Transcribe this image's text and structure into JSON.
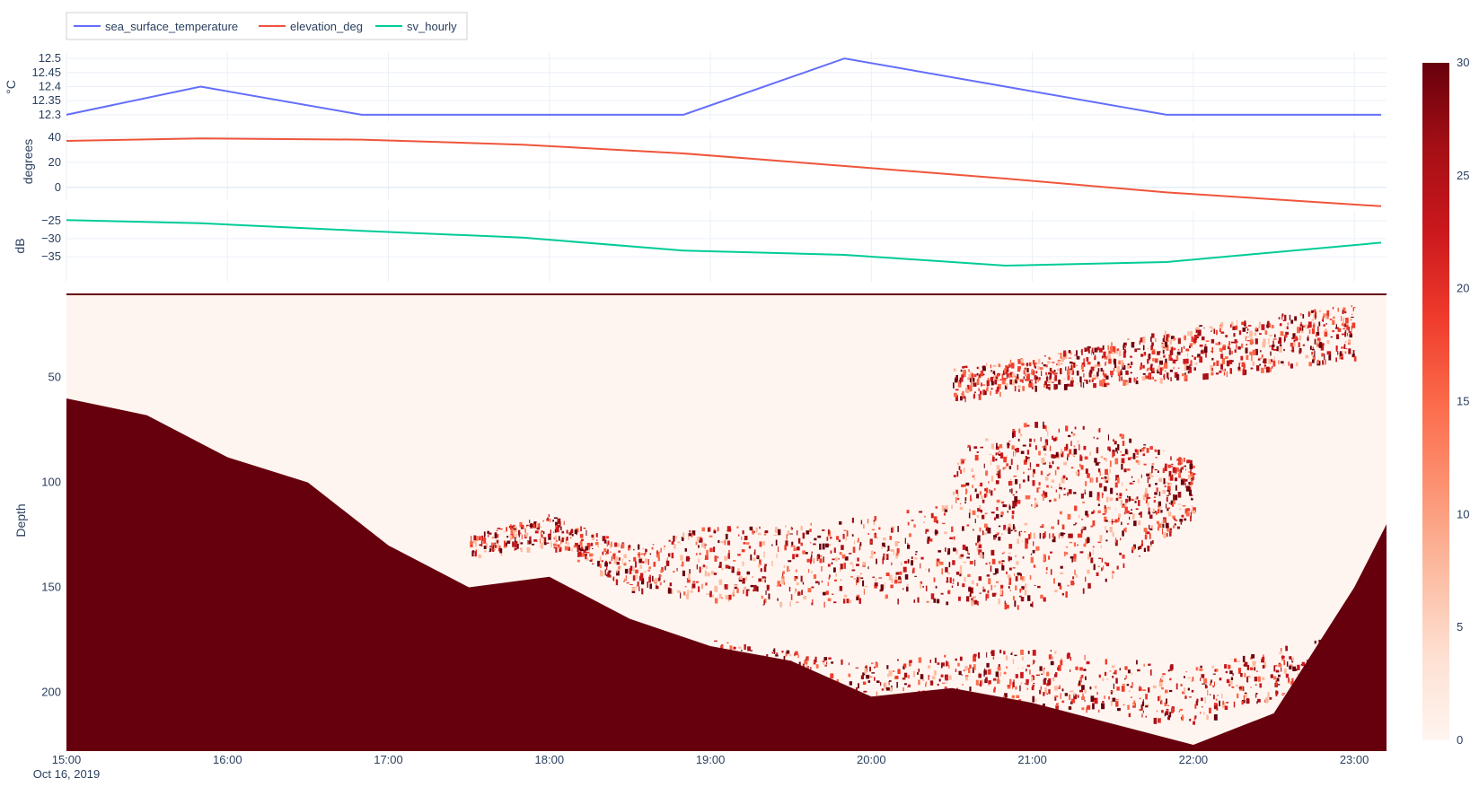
{
  "chart_data": {
    "type": "line",
    "colors": {
      "sea_surface_temperature": "#636efa",
      "elevation_deg": "#ef553b",
      "sv_hourly": "#00cc96",
      "grid": "#ebf0f8",
      "heat_low": "#fff5f0",
      "heat_high": "#67000d"
    },
    "legend": {
      "position": "top-left",
      "items": [
        "sea_surface_temperature",
        "elevation_deg",
        "sv_hourly"
      ]
    },
    "x_axis": {
      "ticks": [
        "15:00",
        "16:00",
        "17:00",
        "18:00",
        "19:00",
        "20:00",
        "21:00",
        "22:00",
        "23:00"
      ],
      "date_label": "Oct 16, 2019",
      "range": [
        "2019-10-16 15:00",
        "2019-10-16 23:12"
      ]
    },
    "panels": [
      {
        "series": "sea_surface_temperature",
        "ylabel": "°C",
        "ylim": [
          12.29,
          12.51
        ],
        "yticks": [
          "12.3",
          "12.35",
          "12.4",
          "12.45",
          "12.5"
        ],
        "x": [
          "15:00",
          "15:50",
          "16:50",
          "17:50",
          "18:50",
          "19:50",
          "20:50",
          "21:50",
          "23:10"
        ],
        "values": [
          12.3,
          12.4,
          12.3,
          12.3,
          12.3,
          12.5,
          12.4,
          12.3,
          12.3
        ]
      },
      {
        "series": "elevation_deg",
        "ylabel": "degrees",
        "ylim": [
          -8,
          42
        ],
        "yticks": [
          "0",
          "20",
          "40"
        ],
        "x": [
          "15:00",
          "15:50",
          "16:50",
          "17:50",
          "18:50",
          "19:50",
          "20:50",
          "21:50",
          "23:10"
        ],
        "values": [
          37,
          39,
          38,
          34,
          27,
          17,
          7,
          -4,
          -15
        ]
      },
      {
        "series": "sv_hourly",
        "ylabel": "dB",
        "ylim": [
          -41,
          -23
        ],
        "yticks": [
          "−25",
          "−30",
          "−35"
        ],
        "x": [
          "15:00",
          "15:50",
          "16:50",
          "17:50",
          "18:50",
          "19:50",
          "20:50",
          "21:50",
          "23:10"
        ],
        "values": [
          -24.8,
          -25.7,
          -27.8,
          -29.7,
          -33.3,
          -34.5,
          -37.5,
          -36.5,
          -31.1
        ]
      },
      {
        "series": "echogram",
        "type": "heatmap",
        "ylabel": "Depth",
        "ylim": [
          228,
          10
        ],
        "yticks": [
          "50",
          "100",
          "150",
          "200"
        ],
        "colorscale": "Reds",
        "zlim": [
          0,
          30
        ],
        "colorbar_ticks": [
          "0",
          "5",
          "10",
          "15",
          "20",
          "25",
          "30"
        ],
        "seafloor_depth": {
          "x": [
            "15:00",
            "15:30",
            "16:00",
            "16:30",
            "17:00",
            "17:30",
            "18:00",
            "18:30",
            "19:00",
            "19:30",
            "20:00",
            "20:30",
            "21:00",
            "21:30",
            "22:00",
            "22:30",
            "23:00",
            "23:12"
          ],
          "values": [
            60,
            68,
            88,
            100,
            130,
            150,
            145,
            165,
            178,
            185,
            202,
            198,
            205,
            215,
            225,
            210,
            150,
            120
          ]
        },
        "scatter_layers": [
          {
            "x": [
              "17:30",
              "18:00",
              "18:30",
              "19:00",
              "19:30",
              "20:00",
              "20:30"
            ],
            "top": [
              125,
              115,
              130,
              120,
              120,
              115,
              110
            ],
            "bottom": [
              135,
              130,
              150,
              155,
              160,
              155,
              160
            ],
            "level": 18
          },
          {
            "x": [
              "20:30",
              "21:00",
              "21:30",
              "22:00"
            ],
            "top": [
              85,
              70,
              75,
              90
            ],
            "bottom": [
              155,
              160,
              145,
              115
            ],
            "level": 24
          },
          {
            "x": [
              "19:00",
              "20:00",
              "21:00",
              "22:00",
              "23:00"
            ],
            "top": [
              175,
              185,
              178,
              188,
              170
            ],
            "bottom": [
              195,
              210,
              205,
              215,
              190
            ],
            "level": 14
          },
          {
            "x": [
              "20:30",
              "21:00",
              "22:00",
              "23:00"
            ],
            "top": [
              45,
              40,
              25,
              15
            ],
            "bottom": [
              60,
              55,
              50,
              40
            ],
            "level": 22
          }
        ]
      }
    ]
  }
}
